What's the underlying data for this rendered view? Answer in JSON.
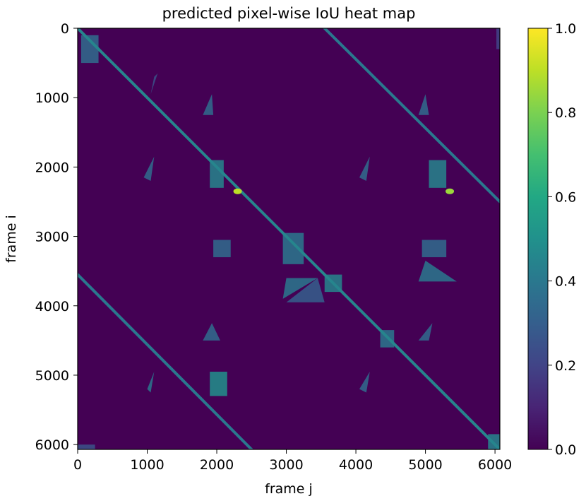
{
  "chart_data": {
    "type": "heatmap",
    "title": "predicted pixel-wise IoU heat map",
    "xlabel": "frame j",
    "ylabel": "frame i",
    "xlim": [
      0,
      6070
    ],
    "ylim": [
      6070,
      0
    ],
    "x_ticks": [
      0,
      1000,
      2000,
      3000,
      4000,
      5000,
      6000
    ],
    "y_ticks": [
      0,
      1000,
      2000,
      3000,
      4000,
      5000,
      6000
    ],
    "colorbar": {
      "colormap": "viridis",
      "range": [
        0.0,
        1.0
      ],
      "ticks": [
        "0.0",
        "0.2",
        "0.4",
        "0.6",
        "0.8",
        "1.0"
      ]
    },
    "background_value": 0.0,
    "diagonal_bands": [
      {
        "from": [
          0,
          0
        ],
        "to": [
          6070,
          6070
        ],
        "value": 0.45
      },
      {
        "from": [
          0,
          3550
        ],
        "to": [
          2500,
          6070
        ],
        "value": 0.4
      },
      {
        "from": [
          3550,
          0
        ],
        "to": [
          6070,
          2500
        ],
        "value": 0.4
      }
    ],
    "hot_spots": [
      {
        "x": 2300,
        "y": 2350,
        "value": 0.9
      },
      {
        "x": 5350,
        "y": 2350,
        "value": 0.85
      }
    ],
    "blocks": [
      {
        "x": [
          50,
          300
        ],
        "y": [
          100,
          500
        ],
        "value": 0.35
      },
      {
        "x": [
          1900,
          2100
        ],
        "y": [
          1900,
          2300
        ],
        "value": 0.45
      },
      {
        "x": [
          2950,
          3250
        ],
        "y": [
          2950,
          3400
        ],
        "value": 0.4
      },
      {
        "x": [
          3550,
          3800
        ],
        "y": [
          3550,
          3800
        ],
        "value": 0.45
      },
      {
        "x": [
          4350,
          4550
        ],
        "y": [
          4350,
          4600
        ],
        "value": 0.4
      },
      {
        "x": [
          5900,
          6070
        ],
        "y": [
          5850,
          6070
        ],
        "value": 0.45
      },
      {
        "x": [
          1900,
          2150
        ],
        "y": [
          4950,
          5300
        ],
        "value": 0.5
      },
      {
        "x": [
          5050,
          5300
        ],
        "y": [
          1900,
          2300
        ],
        "value": 0.45
      },
      {
        "x": [
          6020,
          6070
        ],
        "y": [
          0,
          300
        ],
        "value": 0.2
      },
      {
        "x": [
          0,
          250
        ],
        "y": [
          6000,
          6070
        ],
        "value": 0.25
      },
      {
        "x": [
          1950,
          2200
        ],
        "y": [
          3050,
          3300
        ],
        "value": 0.35
      },
      {
        "x": [
          4950,
          5300
        ],
        "y": [
          3050,
          3300
        ],
        "value": 0.35
      }
    ],
    "triangles": [
      [
        [
          1930,
          950
        ],
        [
          1800,
          1250
        ],
        [
          1950,
          1250
        ],
        0.35
      ],
      [
        [
          1100,
          1850
        ],
        [
          950,
          2150
        ],
        [
          1050,
          2200
        ],
        0.35
      ],
      [
        [
          3000,
          3600
        ],
        [
          2950,
          3900
        ],
        [
          3450,
          3600
        ],
        0.4
      ],
      [
        [
          3450,
          3600
        ],
        [
          3550,
          3950
        ],
        [
          3000,
          3950
        ],
        0.3
      ],
      [
        [
          5000,
          3350
        ],
        [
          4900,
          3650
        ],
        [
          5450,
          3650
        ],
        0.4
      ],
      [
        [
          5000,
          950
        ],
        [
          4900,
          1250
        ],
        [
          5050,
          1250
        ],
        0.35
      ],
      [
        [
          4200,
          1850
        ],
        [
          4050,
          2150
        ],
        [
          4150,
          2200
        ],
        0.35
      ],
      [
        [
          1930,
          4250
        ],
        [
          1800,
          4500
        ],
        [
          2050,
          4500
        ],
        0.35
      ],
      [
        [
          1100,
          4950
        ],
        [
          1000,
          5200
        ],
        [
          1050,
          5250
        ],
        0.4
      ],
      [
        [
          4200,
          4950
        ],
        [
          4050,
          5200
        ],
        [
          4150,
          5250
        ],
        0.35
      ],
      [
        [
          5100,
          4250
        ],
        [
          4900,
          4500
        ],
        [
          5050,
          4500
        ],
        0.35
      ],
      [
        [
          1100,
          700
        ],
        [
          1050,
          950
        ],
        [
          1150,
          650
        ],
        0.25
      ]
    ]
  }
}
